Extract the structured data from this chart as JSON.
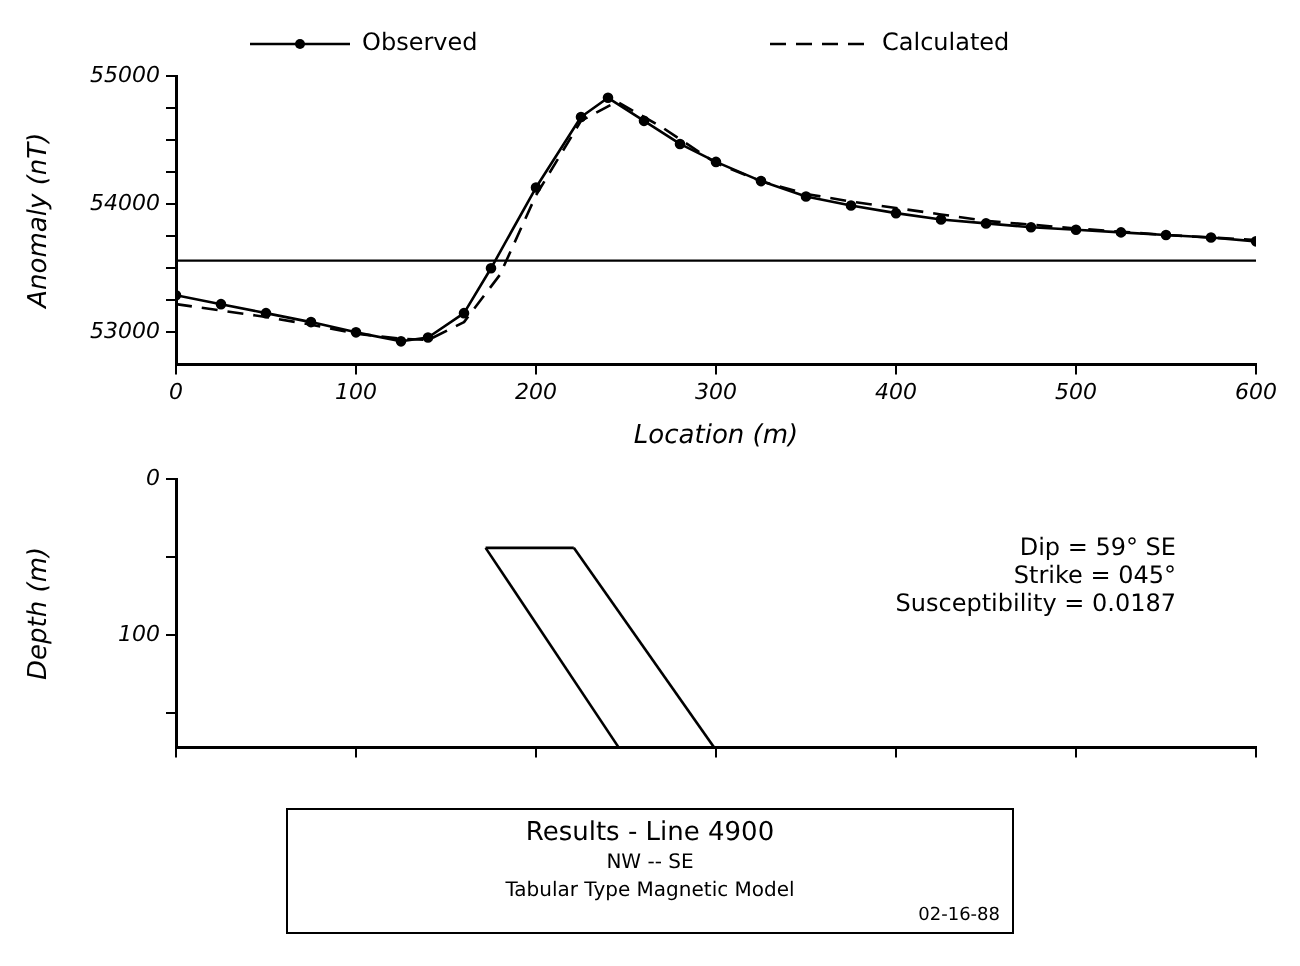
{
  "chart_data": [
    {
      "type": "line",
      "xlabel": "Location (m)",
      "ylabel": "Anomaly (nT)",
      "xlim": [
        0,
        600
      ],
      "xticks": [
        0,
        100,
        200,
        300,
        400,
        500,
        600
      ],
      "ylim": [
        52750,
        55000
      ],
      "yticks": [
        53000,
        {
          "value": 53250,
          "label": null
        },
        {
          "value": 53500,
          "label": null
        },
        {
          "value": 53750,
          "label": null
        },
        54000,
        {
          "value": 54250,
          "label": null
        },
        {
          "value": 54500,
          "label": null
        },
        {
          "value": 54750,
          "label": null
        },
        55000
      ],
      "legend": "top",
      "grid": false,
      "ref_lines": [
        {
          "axis": "y",
          "value": 53560,
          "color": "#000000"
        }
      ],
      "series": [
        {
          "name": "Observed",
          "color": "#000000",
          "marker": "circle",
          "line_style": "solid",
          "x": [
            0,
            25,
            50,
            75,
            100,
            125,
            140,
            160,
            175,
            200,
            225,
            240,
            260,
            280,
            300,
            325,
            350,
            375,
            400,
            425,
            450,
            475,
            500,
            525,
            550,
            575,
            600
          ],
          "values": [
            53290,
            53220,
            53150,
            53080,
            53000,
            52930,
            52960,
            53150,
            53500,
            54130,
            54680,
            54830,
            54650,
            54470,
            54330,
            54180,
            54060,
            53990,
            53930,
            53880,
            53850,
            53820,
            53800,
            53780,
            53760,
            53740,
            53710
          ]
        },
        {
          "name": "Calculated",
          "color": "#000000",
          "marker": "none",
          "line_style": "dashed",
          "x": [
            0,
            25,
            50,
            75,
            100,
            125,
            140,
            160,
            180,
            200,
            225,
            245,
            270,
            300,
            325,
            350,
            375,
            400,
            425,
            450,
            500,
            550,
            600
          ],
          "values": [
            53220,
            53170,
            53120,
            53060,
            52990,
            52950,
            52940,
            53080,
            53450,
            54070,
            54650,
            54800,
            54600,
            54320,
            54180,
            54080,
            54020,
            53970,
            53920,
            53870,
            53810,
            53760,
            53720
          ]
        }
      ]
    },
    {
      "type": "line",
      "ylabel": "Depth (m)",
      "xlim": [
        0,
        600
      ],
      "xticks": [
        {
          "value": 0,
          "label": null
        },
        {
          "value": 100,
          "label": null
        },
        {
          "value": 200,
          "label": null
        },
        {
          "value": 300,
          "label": null
        },
        {
          "value": 400,
          "label": null
        },
        {
          "value": 500,
          "label": null
        },
        {
          "value": 600,
          "label": null
        }
      ],
      "ylim": [
        172,
        0
      ],
      "yticks": [
        0,
        {
          "value": 50,
          "label": null
        },
        100,
        {
          "value": 150,
          "label": null
        }
      ],
      "tick_labels": "y",
      "grid": false,
      "legend": false,
      "annotations": [
        "Dip = 59° SE",
        "Strike = 045°",
        "Susceptibility = 0.0187",
        "Results  -  Line 4900",
        "NW -- SE",
        "Tabular Type Magnetic Model",
        "02-16-88"
      ],
      "series": [
        {
          "color": "#000000",
          "marker": "none",
          "line_style": "solid",
          "x": [
            172,
            221
          ],
          "values": [
            44,
            44
          ]
        },
        {
          "color": "#000000",
          "marker": "none",
          "line_style": "solid",
          "x": [
            172,
            246
          ],
          "values": [
            44,
            172
          ]
        },
        {
          "color": "#000000",
          "marker": "none",
          "line_style": "solid",
          "x": [
            221,
            299
          ],
          "values": [
            44,
            172
          ]
        }
      ]
    }
  ]
}
